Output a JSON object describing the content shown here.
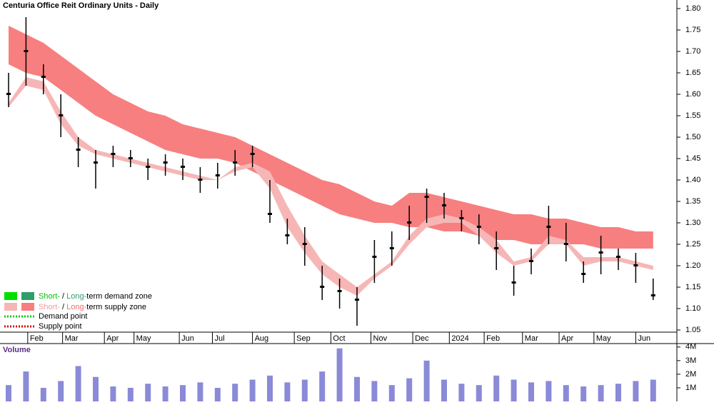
{
  "chart_data": {
    "type": "ohlc",
    "title": "Centuria Office Reit Ordinary Units - Daily",
    "categories": [
      null,
      null,
      null,
      null,
      null,
      null,
      null,
      null,
      null,
      null,
      null,
      null,
      null,
      null,
      null,
      null,
      null,
      null,
      null,
      null,
      null,
      null,
      null,
      null,
      null,
      null,
      null,
      null,
      null,
      null,
      null,
      null,
      null,
      null,
      null,
      null,
      null,
      null
    ],
    "xticks": [
      {
        "value": 1.1,
        "label": "Feb"
      },
      {
        "value": 3.1,
        "label": "Mar"
      },
      {
        "value": 5.5,
        "label": "Apr"
      },
      {
        "value": 7.2,
        "label": "May"
      },
      {
        "value": 9.8,
        "label": "Jun"
      },
      {
        "value": 11.7,
        "label": "Jul"
      },
      {
        "value": 14,
        "label": "Aug"
      },
      {
        "value": 16.4,
        "label": "Sep"
      },
      {
        "value": 18.5,
        "label": "Oct"
      },
      {
        "value": 20.8,
        "label": "Nov"
      },
      {
        "value": 23.2,
        "label": "Dec"
      },
      {
        "value": 25.3,
        "label": "2024"
      },
      {
        "value": 27.3,
        "label": "Feb"
      },
      {
        "value": 29.5,
        "label": "Mar"
      },
      {
        "value": 31.6,
        "label": "Apr"
      },
      {
        "value": 33.6,
        "label": "May"
      },
      {
        "value": 36,
        "label": "Jun"
      }
    ],
    "close": [
      1.6,
      1.7,
      1.64,
      1.55,
      1.47,
      1.44,
      1.46,
      1.45,
      1.43,
      1.44,
      1.43,
      1.4,
      1.41,
      1.44,
      1.46,
      1.32,
      1.27,
      1.25,
      1.15,
      1.14,
      1.12,
      1.22,
      1.24,
      1.3,
      1.36,
      1.34,
      1.31,
      1.29,
      1.24,
      1.16,
      1.21,
      1.29,
      1.25,
      1.18,
      1.23,
      1.22,
      1.2,
      1.13
    ],
    "high": [
      1.65,
      1.78,
      1.67,
      1.6,
      1.5,
      1.47,
      1.48,
      1.47,
      1.45,
      1.46,
      1.45,
      1.43,
      1.44,
      1.47,
      1.48,
      1.4,
      1.31,
      1.29,
      1.2,
      1.17,
      1.15,
      1.26,
      1.28,
      1.34,
      1.38,
      1.37,
      1.33,
      1.32,
      1.28,
      1.2,
      1.24,
      1.34,
      1.3,
      1.21,
      1.27,
      1.24,
      1.23,
      1.17
    ],
    "low": [
      1.57,
      1.62,
      1.6,
      1.5,
      1.43,
      1.38,
      1.43,
      1.43,
      1.4,
      1.41,
      1.4,
      1.37,
      1.38,
      1.41,
      1.43,
      1.3,
      1.25,
      1.2,
      1.12,
      1.1,
      1.06,
      1.16,
      1.2,
      1.26,
      1.3,
      1.31,
      1.28,
      1.25,
      1.19,
      1.13,
      1.18,
      1.25,
      1.21,
      1.16,
      1.18,
      1.19,
      1.16,
      1.12
    ],
    "ylim": [
      1.03,
      1.82
    ],
    "yticks": [
      {
        "value": 1.8,
        "label": "1.80"
      },
      1.75,
      {
        "value": 1.7,
        "label": "1.70"
      },
      1.65,
      {
        "value": 1.6,
        "label": "1.60"
      },
      1.55,
      {
        "value": 1.5,
        "label": "1.50"
      },
      1.45,
      {
        "value": 1.4,
        "label": "1.40"
      },
      1.35,
      {
        "value": 1.3,
        "label": "1.30"
      },
      1.25,
      {
        "value": 1.2,
        "label": "1.20"
      },
      1.15,
      {
        "value": 1.1,
        "label": "1.10"
      },
      1.05
    ],
    "bands": [
      {
        "color": "#f77f7f",
        "upper": [
          1.76,
          1.74,
          1.72,
          1.69,
          1.66,
          1.63,
          1.6,
          1.58,
          1.56,
          1.55,
          1.53,
          1.52,
          1.51,
          1.5,
          1.48,
          1.46,
          1.44,
          1.42,
          1.4,
          1.39,
          1.37,
          1.35,
          1.34,
          1.37,
          1.37,
          1.36,
          1.35,
          1.34,
          1.33,
          1.32,
          1.32,
          1.31,
          1.31,
          1.3,
          1.29,
          1.29,
          1.28,
          1.28
        ],
        "lower": [
          1.67,
          1.65,
          1.64,
          1.61,
          1.58,
          1.55,
          1.53,
          1.51,
          1.49,
          1.47,
          1.46,
          1.45,
          1.45,
          1.44,
          1.42,
          1.4,
          1.38,
          1.36,
          1.34,
          1.32,
          1.31,
          1.3,
          1.3,
          1.29,
          1.29,
          1.28,
          1.28,
          1.27,
          1.26,
          1.26,
          1.25,
          1.25,
          1.25,
          1.25,
          1.24,
          1.24,
          1.24,
          1.24
        ]
      },
      {
        "color": "#f7b6b6",
        "upper": [
          1.58,
          1.64,
          1.63,
          1.56,
          1.5,
          1.47,
          1.46,
          1.45,
          1.44,
          1.43,
          1.42,
          1.41,
          1.4,
          1.43,
          1.44,
          1.42,
          1.34,
          1.27,
          1.21,
          1.18,
          1.15,
          1.18,
          1.21,
          1.27,
          1.31,
          1.32,
          1.31,
          1.29,
          1.26,
          1.21,
          1.22,
          1.27,
          1.26,
          1.22,
          1.22,
          1.22,
          1.21,
          1.2
        ],
        "lower": [
          1.57,
          1.62,
          1.61,
          1.53,
          1.48,
          1.46,
          1.45,
          1.44,
          1.43,
          1.42,
          1.41,
          1.4,
          1.4,
          1.42,
          1.43,
          1.38,
          1.29,
          1.23,
          1.18,
          1.15,
          1.13,
          1.17,
          1.2,
          1.25,
          1.29,
          1.3,
          1.3,
          1.27,
          1.23,
          1.2,
          1.21,
          1.25,
          1.25,
          1.2,
          1.21,
          1.21,
          1.2,
          1.19
        ]
      }
    ],
    "volume_title": "Volume",
    "volume": [
      1.2,
      2.2,
      1.0,
      1.5,
      2.6,
      1.8,
      1.1,
      1.0,
      1.3,
      1.1,
      1.2,
      1.4,
      1.0,
      1.3,
      1.6,
      1.9,
      1.4,
      1.6,
      2.2,
      3.9,
      1.8,
      1.5,
      1.2,
      1.7,
      3.0,
      1.6,
      1.3,
      1.2,
      1.9,
      1.6,
      1.4,
      1.5,
      1.2,
      1.1,
      1.2,
      1.3,
      1.5,
      1.6
    ],
    "vlim": [
      0,
      4.2
    ],
    "vticks": [
      {
        "value": 1,
        "label": "1M"
      },
      {
        "value": 2,
        "label": "2M"
      },
      {
        "value": 3,
        "label": "3M"
      },
      {
        "value": 4,
        "label": "4M"
      }
    ],
    "legend": [
      {
        "parts": [
          "Short-",
          " / ",
          "Long-",
          "term demand zone"
        ]
      },
      {
        "parts": [
          "Short-",
          " / ",
          "Long-",
          "term supply zone"
        ]
      },
      {
        "parts": [
          "Demand point"
        ]
      },
      {
        "parts": [
          "Supply point"
        ]
      }
    ]
  }
}
